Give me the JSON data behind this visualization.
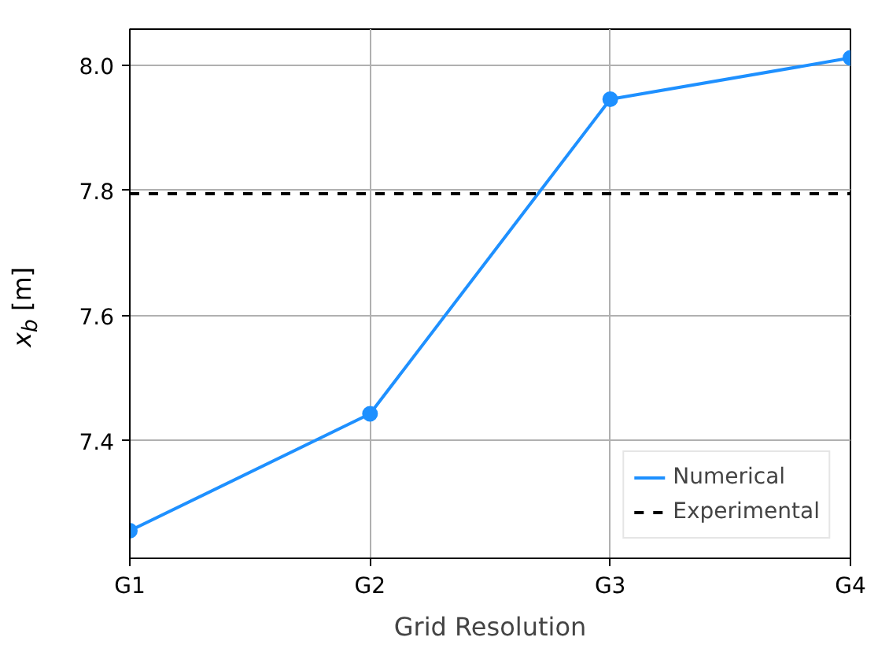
{
  "chart_data": {
    "type": "line",
    "xlabel": "Grid Resolution",
    "ylabel": "x$_{b}$ [m]",
    "categories": [
      "G1",
      "G2",
      "G3",
      "G4"
    ],
    "series": [
      {
        "name": "Numerical",
        "color": "#1e90ff",
        "values": [
          7.256,
          7.443,
          7.946,
          8.012
        ]
      }
    ],
    "ref_lines": [
      {
        "axis": "y",
        "value": 7.795,
        "label": "Experimental",
        "color": "#000000",
        "line_style": "dashed"
      }
    ],
    "ylim": [
      7.212,
      8.058
    ],
    "yticks": [
      7.4,
      7.6,
      7.8,
      {
        "value": 8.0,
        "label": "8.0"
      }
    ],
    "grid": true,
    "legend": "bottom right",
    "marker": "circle",
    "line_style": "solid"
  }
}
